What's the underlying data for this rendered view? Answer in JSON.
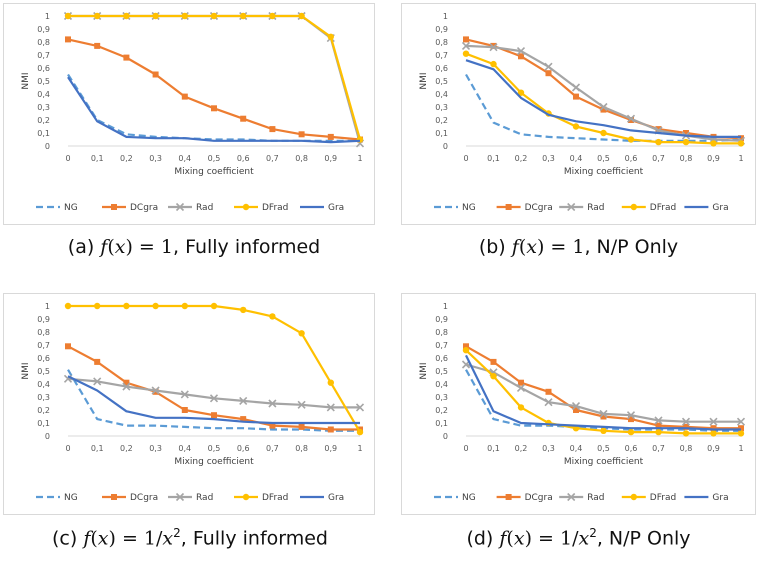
{
  "chart_data": [
    {
      "type": "line",
      "caption": {
        "label": "(a)",
        "rest": ", Fully informed"
      },
      "xlabel": "Mixing coefficient",
      "ylabel": "NMI",
      "ylim": [
        0,
        1
      ],
      "x": [
        0,
        0.1,
        0.2,
        0.3,
        0.4,
        0.5,
        0.6,
        0.7,
        0.8,
        0.9,
        1
      ],
      "x_tick_labels": [
        "0",
        "0,1",
        "0,2",
        "0,3",
        "0,4",
        "0,5",
        "0,6",
        "0,7",
        "0,8",
        "0,9",
        "1"
      ],
      "y_tick_labels": [
        "0",
        "0,1",
        "0,2",
        "0,3",
        "0,4",
        "0,5",
        "0,6",
        "0,7",
        "0,8",
        "0,9",
        "1"
      ],
      "grid": false,
      "legend": "bottom",
      "series": [
        {
          "name": "NG",
          "color": "#5b9bd5",
          "marker": "none",
          "dash": true,
          "values": [
            0.55,
            0.2,
            0.09,
            0.07,
            0.06,
            0.05,
            0.05,
            0.04,
            0.04,
            0.04,
            0.04
          ]
        },
        {
          "name": "DCgra",
          "color": "#ed7d31",
          "marker": "square",
          "dash": false,
          "values": [
            0.82,
            0.77,
            0.68,
            0.55,
            0.38,
            0.29,
            0.21,
            0.13,
            0.09,
            0.07,
            0.05
          ]
        },
        {
          "name": "Rad",
          "color": "#a5a5a5",
          "marker": "x",
          "dash": false,
          "values": [
            1,
            1,
            1,
            1,
            1,
            1,
            1,
            1,
            1,
            0.83,
            0.02
          ]
        },
        {
          "name": "DFrad",
          "color": "#ffc000",
          "marker": "circle",
          "dash": false,
          "values": [
            1,
            1,
            1,
            1,
            1,
            1,
            1,
            1,
            1,
            0.84,
            0.05
          ]
        },
        {
          "name": "Gra",
          "color": "#4472c4",
          "marker": "none",
          "dash": false,
          "values": [
            0.53,
            0.19,
            0.07,
            0.06,
            0.06,
            0.04,
            0.04,
            0.04,
            0.04,
            0.03,
            0.04
          ]
        }
      ]
    },
    {
      "type": "line",
      "caption": {
        "label": "(b)",
        "rest": ", N/P Only"
      },
      "xlabel": "Mixing coefficient",
      "ylabel": "NMI",
      "ylim": [
        0,
        1
      ],
      "x": [
        0,
        0.1,
        0.2,
        0.3,
        0.4,
        0.5,
        0.6,
        0.7,
        0.8,
        0.9,
        1
      ],
      "x_tick_labels": [
        "0",
        "0,1",
        "0,2",
        "0,3",
        "0,4",
        "0,5",
        "0,6",
        "0,7",
        "0,8",
        "0,9",
        "1"
      ],
      "y_tick_labels": [
        "0",
        "0,1",
        "0,2",
        "0,3",
        "0,4",
        "0,5",
        "0,6",
        "0,7",
        "0,8",
        "0,9",
        "1"
      ],
      "grid": false,
      "legend": "bottom",
      "series": [
        {
          "name": "NG",
          "color": "#5b9bd5",
          "marker": "none",
          "dash": true,
          "values": [
            0.55,
            0.18,
            0.09,
            0.07,
            0.06,
            0.05,
            0.04,
            0.04,
            0.04,
            0.04,
            0.05
          ]
        },
        {
          "name": "DCgra",
          "color": "#ed7d31",
          "marker": "square",
          "dash": false,
          "values": [
            0.82,
            0.77,
            0.69,
            0.56,
            0.38,
            0.28,
            0.2,
            0.13,
            0.1,
            0.07,
            0.06
          ]
        },
        {
          "name": "Rad",
          "color": "#a5a5a5",
          "marker": "x",
          "dash": false,
          "values": [
            0.77,
            0.76,
            0.73,
            0.61,
            0.45,
            0.3,
            0.21,
            0.12,
            0.08,
            0.05,
            0.04
          ]
        },
        {
          "name": "DFrad",
          "color": "#ffc000",
          "marker": "circle",
          "dash": false,
          "values": [
            0.71,
            0.63,
            0.41,
            0.25,
            0.15,
            0.1,
            0.05,
            0.03,
            0.03,
            0.02,
            0.02
          ]
        },
        {
          "name": "Gra",
          "color": "#4472c4",
          "marker": "none",
          "dash": false,
          "values": [
            0.66,
            0.59,
            0.37,
            0.24,
            0.19,
            0.16,
            0.12,
            0.1,
            0.08,
            0.07,
            0.07
          ]
        }
      ]
    },
    {
      "type": "line",
      "caption": {
        "label": "(c)",
        "rest": ", Fully informed"
      },
      "xlabel": "Mixing coefficient",
      "ylabel": "NMI",
      "ylim": [
        0,
        1
      ],
      "x": [
        0,
        0.1,
        0.2,
        0.3,
        0.4,
        0.5,
        0.6,
        0.7,
        0.8,
        0.9,
        1
      ],
      "x_tick_labels": [
        "0",
        "0,1",
        "0,2",
        "0,3",
        "0,4",
        "0,5",
        "0,6",
        "0,7",
        "0,8",
        "0,9",
        "1"
      ],
      "y_tick_labels": [
        "0",
        "0,1",
        "0,2",
        "0,3",
        "0,4",
        "0,5",
        "0,6",
        "0,7",
        "0,8",
        "0,9",
        "1"
      ],
      "grid": false,
      "legend": "bottom",
      "series": [
        {
          "name": "NG",
          "color": "#5b9bd5",
          "marker": "none",
          "dash": true,
          "values": [
            0.51,
            0.13,
            0.08,
            0.08,
            0.07,
            0.06,
            0.06,
            0.05,
            0.05,
            0.04,
            0.04
          ]
        },
        {
          "name": "DCgra",
          "color": "#ed7d31",
          "marker": "square",
          "dash": false,
          "values": [
            0.69,
            0.57,
            0.41,
            0.34,
            0.2,
            0.16,
            0.13,
            0.08,
            0.07,
            0.05,
            0.05
          ]
        },
        {
          "name": "Rad",
          "color": "#a5a5a5",
          "marker": "x",
          "dash": false,
          "values": [
            0.44,
            0.42,
            0.38,
            0.35,
            0.32,
            0.29,
            0.27,
            0.25,
            0.24,
            0.22,
            0.22
          ]
        },
        {
          "name": "DFrad",
          "color": "#ffc000",
          "marker": "circle",
          "dash": false,
          "values": [
            1,
            1,
            1,
            1,
            1,
            1,
            0.97,
            0.92,
            0.79,
            0.41,
            0.03
          ]
        },
        {
          "name": "Gra",
          "color": "#4472c4",
          "marker": "none",
          "dash": false,
          "values": [
            0.46,
            0.35,
            0.19,
            0.14,
            0.14,
            0.13,
            0.11,
            0.1,
            0.1,
            0.1,
            0.1
          ]
        }
      ]
    },
    {
      "type": "line",
      "caption": {
        "label": "(d)",
        "rest": ", N/P Only"
      },
      "xlabel": "Mixing coefficient",
      "ylabel": "NMI",
      "ylim": [
        0,
        1
      ],
      "x": [
        0,
        0.1,
        0.2,
        0.3,
        0.4,
        0.5,
        0.6,
        0.7,
        0.8,
        0.9,
        1
      ],
      "x_tick_labels": [
        "0",
        "0,1",
        "0,2",
        "0,3",
        "0,4",
        "0,5",
        "0,6",
        "0,7",
        "0,8",
        "0,9",
        "1"
      ],
      "y_tick_labels": [
        "0",
        "0,1",
        "0,2",
        "0,3",
        "0,4",
        "0,5",
        "0,6",
        "0,7",
        "0,8",
        "0,9",
        "1"
      ],
      "grid": false,
      "legend": "bottom",
      "series": [
        {
          "name": "NG",
          "color": "#5b9bd5",
          "marker": "none",
          "dash": true,
          "values": [
            0.51,
            0.13,
            0.08,
            0.08,
            0.07,
            0.06,
            0.05,
            0.05,
            0.05,
            0.04,
            0.04
          ]
        },
        {
          "name": "DCgra",
          "color": "#ed7d31",
          "marker": "square",
          "dash": false,
          "values": [
            0.69,
            0.57,
            0.41,
            0.34,
            0.2,
            0.15,
            0.13,
            0.08,
            0.07,
            0.06,
            0.06
          ]
        },
        {
          "name": "Rad",
          "color": "#a5a5a5",
          "marker": "x",
          "dash": false,
          "values": [
            0.55,
            0.49,
            0.37,
            0.26,
            0.23,
            0.17,
            0.16,
            0.12,
            0.11,
            0.11,
            0.11
          ]
        },
        {
          "name": "DFrad",
          "color": "#ffc000",
          "marker": "circle",
          "dash": false,
          "values": [
            0.66,
            0.46,
            0.22,
            0.1,
            0.06,
            0.04,
            0.03,
            0.03,
            0.02,
            0.02,
            0.02
          ]
        },
        {
          "name": "Gra",
          "color": "#4472c4",
          "marker": "none",
          "dash": false,
          "values": [
            0.62,
            0.19,
            0.1,
            0.09,
            0.08,
            0.07,
            0.06,
            0.06,
            0.06,
            0.05,
            0.05
          ]
        }
      ]
    }
  ]
}
